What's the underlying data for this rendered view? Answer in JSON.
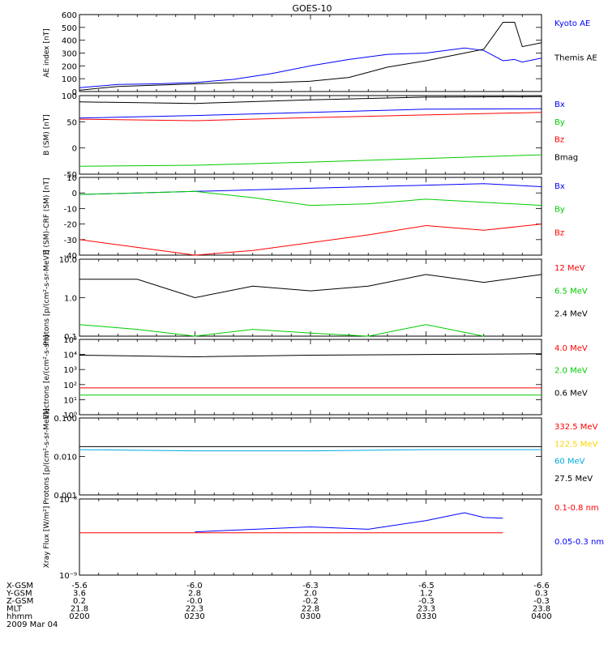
{
  "title": "GOES-10",
  "date": "2009 Mar 04",
  "colors": {
    "black": "#000000",
    "blue": "#0000ff",
    "red": "#ff0000",
    "green": "#00cc00",
    "yellow": "#ffd400",
    "cyan": "#00aadd"
  },
  "footer": {
    "rows": [
      {
        "label": "X-GSM",
        "values": [
          "-5.6",
          "-6.0",
          "-6.3",
          "-6.5",
          "-6.6"
        ]
      },
      {
        "label": "Y-GSM",
        "values": [
          "3.6",
          "2.8",
          "2.0",
          "1.2",
          "0.3"
        ]
      },
      {
        "label": "Z-GSM",
        "values": [
          "0.2",
          "-0.0",
          "-0.2",
          "-0.3",
          "-0.3"
        ]
      },
      {
        "label": "MLT",
        "values": [
          "21.8",
          "22.3",
          "22.8",
          "23.3",
          "23.8"
        ]
      },
      {
        "label": "hhmm",
        "values": [
          "0200",
          "0230",
          "0300",
          "0330",
          "0400"
        ]
      }
    ]
  },
  "chart_data": [
    {
      "type": "line",
      "ylabel": "AE index [nT]",
      "ylim": [
        0,
        600
      ],
      "log": false,
      "yticks": [
        "0",
        "100",
        "200",
        "300",
        "400",
        "500",
        "600"
      ],
      "x": [
        "0200",
        "0210",
        "0220",
        "0230",
        "0240",
        "0250",
        "0300",
        "0310",
        "0320",
        "0330",
        "0340",
        "0345",
        "0350",
        "0353",
        "0355",
        "0400"
      ],
      "series": [
        {
          "name": "Kyoto AE",
          "color": "blue",
          "values": [
            30,
            55,
            60,
            70,
            95,
            140,
            200,
            250,
            290,
            300,
            340,
            320,
            240,
            250,
            230,
            260
          ]
        },
        {
          "name": "Themis AE",
          "color": "black",
          "values": [
            10,
            40,
            50,
            60,
            70,
            70,
            80,
            110,
            190,
            240,
            300,
            330,
            540,
            540,
            350,
            380
          ]
        }
      ]
    },
    {
      "type": "line",
      "ylabel": "B (SM) [nT]",
      "ylim": [
        -50,
        100
      ],
      "log": false,
      "yticks": [
        "-50",
        "0",
        "50",
        "100"
      ],
      "x": [
        "0200",
        "0230",
        "0300",
        "0330",
        "0400"
      ],
      "series": [
        {
          "name": "Bx",
          "color": "blue",
          "values": [
            57,
            62,
            68,
            74,
            75
          ]
        },
        {
          "name": "By",
          "color": "green",
          "values": [
            -35,
            -33,
            -27,
            -20,
            -13
          ]
        },
        {
          "name": "Bz",
          "color": "red",
          "values": [
            55,
            52,
            58,
            63,
            68
          ]
        },
        {
          "name": "Bmag",
          "color": "black",
          "values": [
            88,
            85,
            92,
            97,
            98
          ]
        }
      ]
    },
    {
      "type": "line",
      "ylabel": "B (SM)-CRF (SM) [nT]",
      "ylim": [
        -40,
        10
      ],
      "log": false,
      "yticks": [
        "-40",
        "-30",
        "-20",
        "-10",
        "0",
        "10"
      ],
      "x": [
        "0200",
        "0215",
        "0230",
        "0245",
        "0300",
        "0315",
        "0330",
        "0345",
        "0400"
      ],
      "series": [
        {
          "name": "Bx",
          "color": "blue",
          "values": [
            -1,
            0,
            1,
            2,
            3,
            4,
            5,
            6,
            4
          ]
        },
        {
          "name": "By",
          "color": "green",
          "values": [
            -1,
            0,
            1,
            -3,
            -8,
            -7,
            -4,
            -6,
            -8
          ]
        },
        {
          "name": "Bz",
          "color": "red",
          "values": [
            -30,
            -35,
            -40,
            -37,
            -32,
            -27,
            -21,
            -24,
            -20
          ]
        }
      ]
    },
    {
      "type": "line",
      "ylabel": "Protons [p/(cm²-s-sr-MeV)]",
      "ylim": [
        0.1,
        10.0
      ],
      "log": true,
      "yticks": [
        "0.1",
        "1.0",
        "10.0"
      ],
      "x": [
        "0200",
        "0215",
        "0230",
        "0245",
        "0300",
        "0315",
        "0330",
        "0345",
        "0400"
      ],
      "series": [
        {
          "name": "12 MeV",
          "color": "red",
          "values": [
            null,
            null,
            null,
            null,
            null,
            null,
            null,
            null,
            null
          ]
        },
        {
          "name": "6.5 MeV",
          "color": "green",
          "values": [
            0.2,
            0.15,
            0.1,
            0.15,
            0.12,
            0.1,
            0.2,
            0.1,
            null
          ]
        },
        {
          "name": "2.4 MeV",
          "color": "black",
          "values": [
            3,
            3,
            1,
            2,
            1.5,
            2,
            4,
            2.5,
            4
          ]
        }
      ]
    },
    {
      "type": "line",
      "ylabel": "Electrons [e/(cm²-s-sr)]",
      "ylim": [
        1,
        100000
      ],
      "log": true,
      "yticks": [
        "10⁰",
        "10¹",
        "10²",
        "10³",
        "10⁴",
        "10⁵"
      ],
      "x": [
        "0200",
        "0230",
        "0300",
        "0330",
        "0400"
      ],
      "series": [
        {
          "name": "4.0 MeV",
          "color": "red",
          "values": [
            60,
            60,
            60,
            60,
            60
          ]
        },
        {
          "name": "2.0 MeV",
          "color": "green",
          "values": [
            20,
            20,
            20,
            20,
            20
          ]
        },
        {
          "name": "0.6 MeV",
          "color": "black",
          "values": [
            9000,
            7000,
            9000,
            10000,
            11000
          ]
        }
      ]
    },
    {
      "type": "line",
      "ylabel": "Protons [p/(cm²-s-sr-MeV)]",
      "ylim": [
        0.001,
        0.1
      ],
      "log": true,
      "yticks": [
        "0.001",
        "0.010",
        "0.100"
      ],
      "x": [
        "0200",
        "0230",
        "0300",
        "0330",
        "0400"
      ],
      "series": [
        {
          "name": "332.5 MeV",
          "color": "red",
          "values": [
            null,
            null,
            null,
            null,
            null
          ]
        },
        {
          "name": "122.5 MeV",
          "color": "yellow",
          "values": [
            null,
            null,
            null,
            null,
            null
          ]
        },
        {
          "name": "60 MeV",
          "color": "cyan",
          "values": [
            0.015,
            0.014,
            0.014,
            0.015,
            0.015
          ]
        },
        {
          "name": "27.5 MeV",
          "color": "black",
          "values": [
            0.018,
            0.018,
            0.018,
            0.018,
            0.018
          ]
        }
      ]
    },
    {
      "type": "line",
      "ylabel": "Xray Flux [W/m²]",
      "ylim": [
        1e-09,
        1e-08
      ],
      "log": true,
      "yticks": [
        "10⁻⁹",
        "10⁻⁸"
      ],
      "x": [
        "0200",
        "0230",
        "0300",
        "0315",
        "0330",
        "0340",
        "0345",
        "0350"
      ],
      "series": [
        {
          "name": "0.1-0.8 nm",
          "color": "red",
          "values": [
            3.6e-09,
            3.6e-09,
            3.6e-09,
            3.6e-09,
            3.6e-09,
            3.6e-09,
            3.6e-09,
            3.6e-09
          ]
        },
        {
          "name": "0.05-0.3 nm",
          "color": "blue",
          "values": [
            null,
            3.7e-09,
            4.3e-09,
            4e-09,
            5.2e-09,
            6.6e-09,
            5.7e-09,
            5.6e-09
          ]
        }
      ]
    }
  ]
}
